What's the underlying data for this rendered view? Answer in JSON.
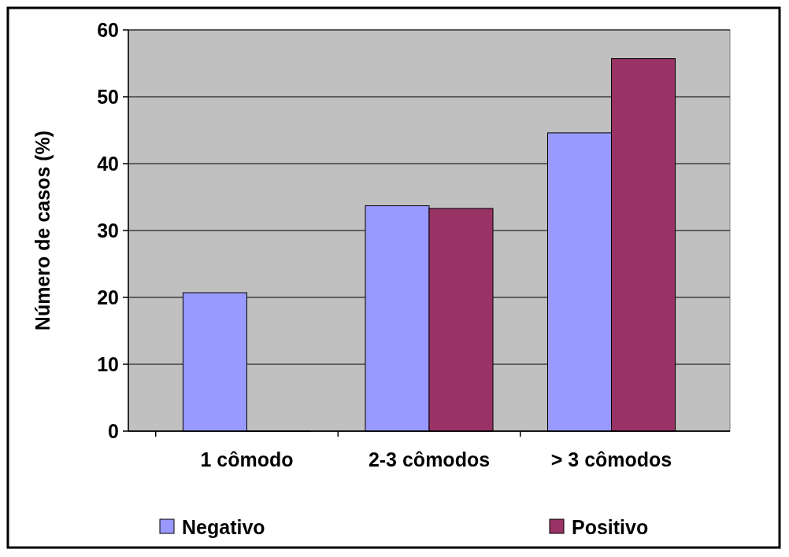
{
  "chart_data": {
    "type": "bar",
    "ylabel": "Número de casos (%)",
    "categories": [
      "1 cômodo",
      "2-3 cômodos",
      "> 3 cômodos"
    ],
    "series": [
      {
        "name": "Negativo",
        "color": "#9999ff",
        "values": [
          20.7,
          33.7,
          44.6
        ]
      },
      {
        "name": "Positivo",
        "color": "#993366",
        "values": [
          0,
          33.3,
          55.7
        ]
      }
    ],
    "ylim": [
      0,
      60
    ],
    "yticks": [
      0,
      10,
      20,
      30,
      40,
      50,
      60
    ],
    "grid": "y",
    "legend": "bottom"
  }
}
